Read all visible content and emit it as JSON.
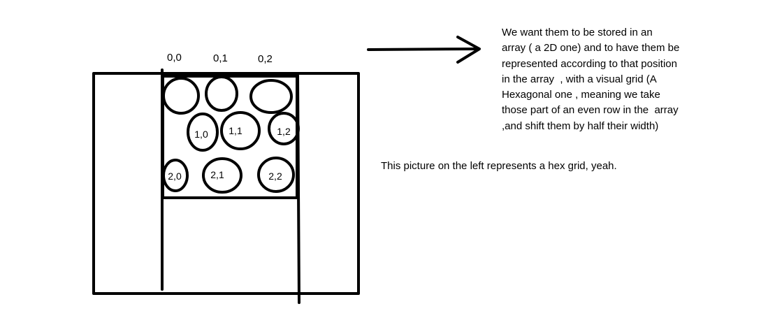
{
  "column_labels": [
    "0,0",
    "0,1",
    "0,2"
  ],
  "cells": [
    "1,0",
    "1,1",
    "1,2",
    "2,0",
    "2,1",
    "2,2"
  ],
  "note_main_lines": [
    "We want them to be stored in an",
    "array ( a 2D one) and to have them be",
    "represented according to that position",
    "in the array  , with a visual grid (A",
    "Hexagonal one , meaning we take",
    "those part of an even row in the  array",
    ",and shift them by half their width)"
  ],
  "note_secondary": "This picture on the left represents a hex grid, yeah.",
  "colors": {
    "ink": "#000000",
    "background": "#ffffff"
  }
}
